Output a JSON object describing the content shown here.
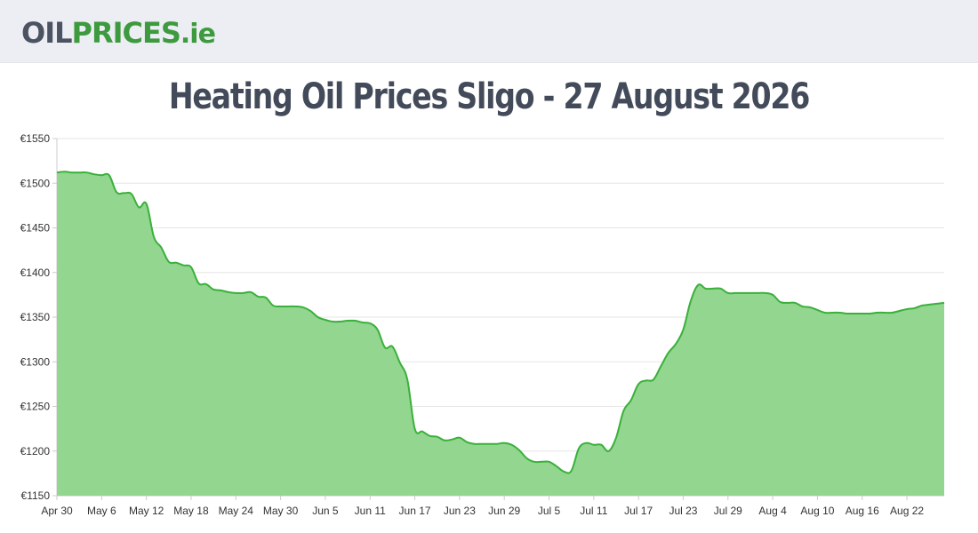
{
  "header": {
    "logo": {
      "part1": "OIL",
      "part2": "PRICES",
      "part3": ".ie"
    },
    "background": "#eceef4"
  },
  "page": {
    "title": "Heating Oil Prices Sligo - 27 August 2026"
  },
  "chart_data": {
    "type": "area",
    "title": "Heating Oil Prices Sligo - 27 August 2026",
    "xlabel": "",
    "ylabel": "",
    "ylim": [
      1150,
      1550
    ],
    "xlim": [
      "2026-04-30",
      "2026-08-27"
    ],
    "yticks": [
      1150,
      1200,
      1250,
      1300,
      1350,
      1400,
      1450,
      1500,
      1550
    ],
    "ytick_prefix": "€",
    "xticks": [
      "2026-04-30",
      "2026-05-06",
      "2026-05-12",
      "2026-05-18",
      "2026-05-24",
      "2026-05-30",
      "2026-06-05",
      "2026-06-11",
      "2026-06-17",
      "2026-06-23",
      "2026-06-29",
      "2026-07-05",
      "2026-07-11",
      "2026-07-17",
      "2026-07-23",
      "2026-07-29",
      "2026-08-04",
      "2026-08-10",
      "2026-08-16",
      "2026-08-22"
    ],
    "xtick_labels": [
      "Apr 30",
      "May 6",
      "May 12",
      "May 18",
      "May 24",
      "May 30",
      "Jun 5",
      "Jun 11",
      "Jun 17",
      "Jun 23",
      "Jun 29",
      "Jul 5",
      "Jul 11",
      "Jul 17",
      "Jul 23",
      "Jul 29",
      "Aug 4",
      "Aug 10",
      "Aug 16",
      "Aug 22"
    ],
    "grid": true,
    "legend": "none",
    "line_color": "#3ab03a",
    "fill_color": "#92d68f",
    "series": [
      {
        "x": [
          "2026-04-30",
          "2026-05-01",
          "2026-05-02",
          "2026-05-03",
          "2026-05-04",
          "2026-05-05",
          "2026-05-06",
          "2026-05-07",
          "2026-05-08",
          "2026-05-09",
          "2026-05-10",
          "2026-05-11",
          "2026-05-12",
          "2026-05-13",
          "2026-05-14",
          "2026-05-15",
          "2026-05-16",
          "2026-05-17",
          "2026-05-18",
          "2026-05-19",
          "2026-05-20",
          "2026-05-21",
          "2026-05-22",
          "2026-05-23",
          "2026-05-24",
          "2026-05-25",
          "2026-05-26",
          "2026-05-27",
          "2026-05-28",
          "2026-05-29",
          "2026-05-30",
          "2026-05-31",
          "2026-06-01",
          "2026-06-02",
          "2026-06-03",
          "2026-06-04",
          "2026-06-05",
          "2026-06-06",
          "2026-06-07",
          "2026-06-08",
          "2026-06-09",
          "2026-06-10",
          "2026-06-11",
          "2026-06-12",
          "2026-06-13",
          "2026-06-14",
          "2026-06-15",
          "2026-06-16",
          "2026-06-17",
          "2026-06-18",
          "2026-06-19",
          "2026-06-20",
          "2026-06-21",
          "2026-06-22",
          "2026-06-23",
          "2026-06-24",
          "2026-06-25",
          "2026-06-26",
          "2026-06-27",
          "2026-06-28",
          "2026-06-29",
          "2026-06-30",
          "2026-07-01",
          "2026-07-02",
          "2026-07-03",
          "2026-07-04",
          "2026-07-05",
          "2026-07-06",
          "2026-07-07",
          "2026-07-08",
          "2026-07-09",
          "2026-07-10",
          "2026-07-11",
          "2026-07-12",
          "2026-07-13",
          "2026-07-14",
          "2026-07-15",
          "2026-07-16",
          "2026-07-17",
          "2026-07-18",
          "2026-07-19",
          "2026-07-20",
          "2026-07-21",
          "2026-07-22",
          "2026-07-23",
          "2026-07-24",
          "2026-07-25",
          "2026-07-26",
          "2026-07-27",
          "2026-07-28",
          "2026-07-29",
          "2026-07-30",
          "2026-07-31",
          "2026-08-01",
          "2026-08-02",
          "2026-08-03",
          "2026-08-04",
          "2026-08-05",
          "2026-08-06",
          "2026-08-07",
          "2026-08-08",
          "2026-08-09",
          "2026-08-10",
          "2026-08-11",
          "2026-08-12",
          "2026-08-13",
          "2026-08-14",
          "2026-08-15",
          "2026-08-16",
          "2026-08-17",
          "2026-08-18",
          "2026-08-19",
          "2026-08-20",
          "2026-08-21",
          "2026-08-22",
          "2026-08-23",
          "2026-08-24",
          "2026-08-25",
          "2026-08-26",
          "2026-08-27"
        ],
        "values": [
          1512,
          1513,
          1512,
          1512,
          1512,
          1510,
          1509,
          1509,
          1490,
          1489,
          1488,
          1473,
          1477,
          1440,
          1428,
          1412,
          1411,
          1408,
          1406,
          1388,
          1387,
          1381,
          1380,
          1378,
          1377,
          1377,
          1378,
          1373,
          1372,
          1363,
          1362,
          1362,
          1362,
          1361,
          1357,
          1350,
          1347,
          1345,
          1345,
          1346,
          1346,
          1344,
          1343,
          1336,
          1316,
          1317,
          1299,
          1280,
          1225,
          1222,
          1217,
          1216,
          1212,
          1213,
          1215,
          1210,
          1208,
          1208,
          1208,
          1208,
          1209,
          1207,
          1201,
          1192,
          1188,
          1188,
          1188,
          1183,
          1177,
          1178,
          1203,
          1209,
          1207,
          1207,
          1200,
          1215,
          1245,
          1257,
          1275,
          1279,
          1280,
          1295,
          1310,
          1320,
          1336,
          1368,
          1386,
          1382,
          1382,
          1382,
          1377,
          1377,
          1377,
          1377,
          1377,
          1377,
          1375,
          1367,
          1366,
          1366,
          1362,
          1361,
          1358,
          1355,
          1355,
          1355,
          1354,
          1354,
          1354,
          1354,
          1355,
          1355,
          1355,
          1357,
          1359,
          1360,
          1363,
          1364,
          1365,
          1366
        ]
      }
    ]
  }
}
